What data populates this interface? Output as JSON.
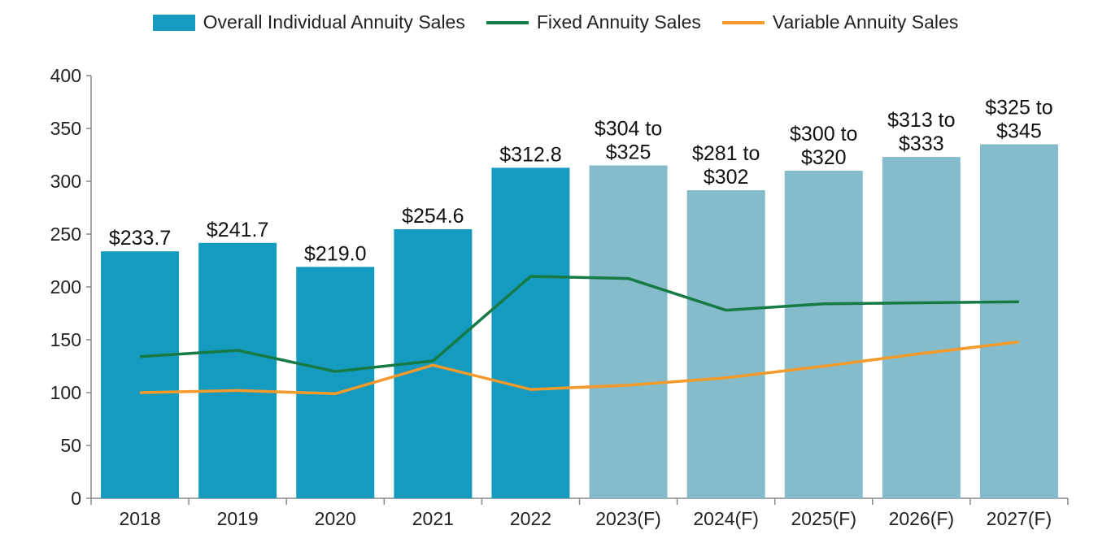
{
  "chart_data": {
    "type": "bar",
    "title": "",
    "xlabel": "",
    "ylabel": "",
    "ylim": [
      0,
      400
    ],
    "yticks": [
      0,
      50,
      100,
      150,
      200,
      250,
      300,
      350,
      400
    ],
    "categories": [
      "2018",
      "2019",
      "2020",
      "2021",
      "2022",
      "2023(F)",
      "2024(F)",
      "2025(F)",
      "2026(F)",
      "2027(F)"
    ],
    "series": [
      {
        "name": "Overall Individual Annuity Sales",
        "type": "bar",
        "values": [
          233.7,
          241.7,
          219.0,
          254.6,
          312.8,
          315,
          291.5,
          310,
          323,
          335
        ],
        "labels": [
          "$233.7",
          "$241.7",
          "$219.0",
          "$254.6",
          "$312.8",
          "$304 to\n$325",
          "$281 to\n$302",
          "$300 to\n$320",
          "$313 to\n$333",
          "$325 to\n$345"
        ],
        "forecast": [
          false,
          false,
          false,
          false,
          false,
          true,
          true,
          true,
          true,
          true
        ],
        "color": "#159bbf",
        "forecast_color": "#85bccb"
      },
      {
        "name": "Fixed Annuity Sales",
        "type": "line",
        "values": [
          134,
          140,
          120,
          130,
          210,
          208,
          178,
          184,
          185,
          186
        ],
        "color": "#167a45"
      },
      {
        "name": "Variable Annuity Sales",
        "type": "line",
        "values": [
          100,
          102,
          99,
          126,
          103,
          107,
          114,
          125,
          137,
          148
        ],
        "color": "#f39a2a"
      }
    ],
    "legend_position": "top-center",
    "grid": false
  }
}
